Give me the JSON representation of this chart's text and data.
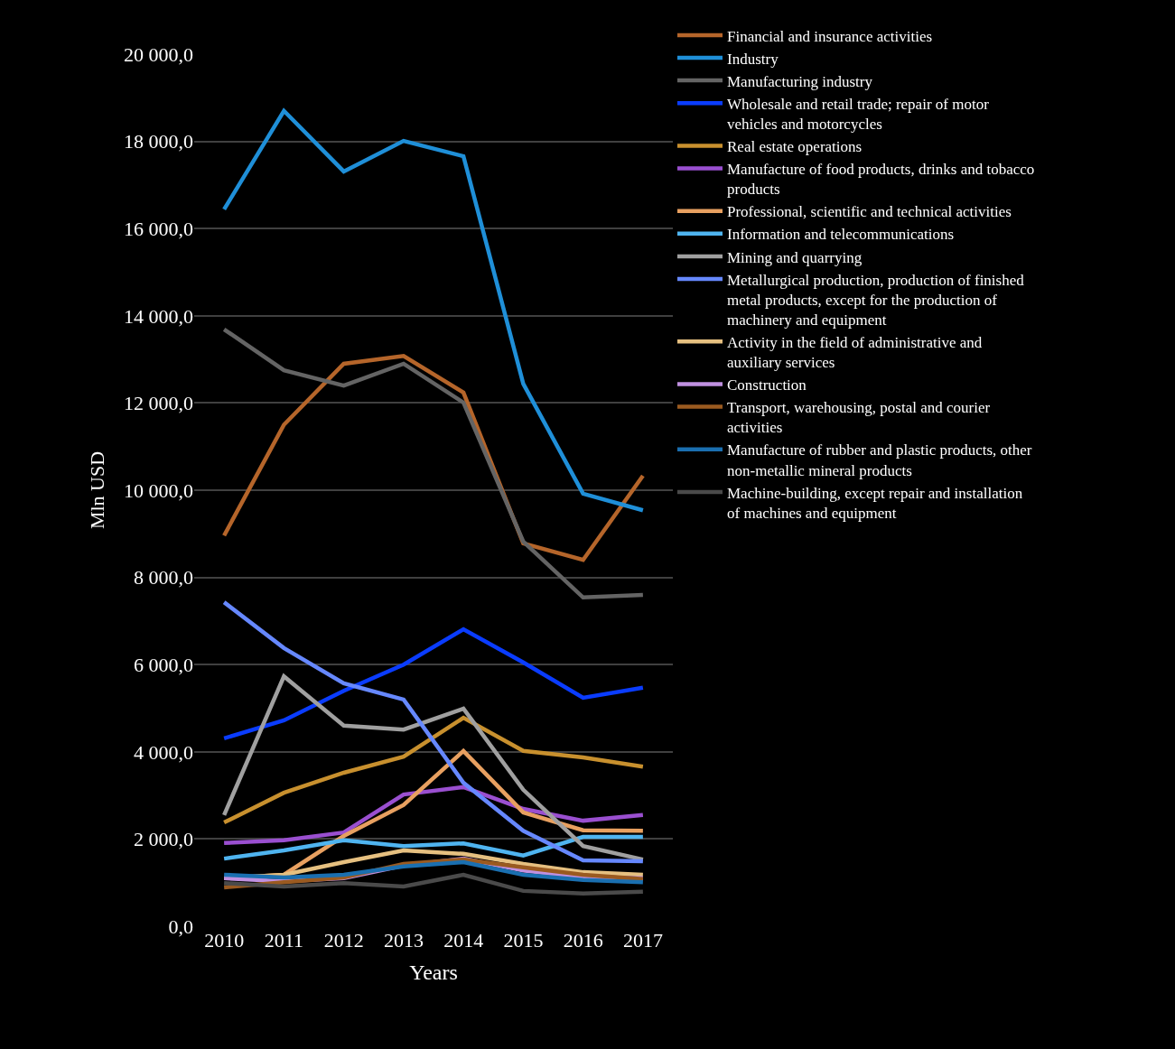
{
  "chart_data": {
    "type": "line",
    "xlabel": "Years",
    "ylabel": "Mln USD",
    "categories": [
      "2010",
      "2011",
      "2012",
      "2013",
      "2014",
      "2015",
      "2016",
      "2017"
    ],
    "ylim": [
      0,
      20000
    ],
    "yticks": [
      {
        "value": 0,
        "label": "0,0"
      },
      {
        "value": 2000,
        "label": "2 000,0"
      },
      {
        "value": 4000,
        "label": "4 000,0"
      },
      {
        "value": 6000,
        "label": "6 000,0"
      },
      {
        "value": 8000,
        "label": "8 000,0"
      },
      {
        "value": 10000,
        "label": "10 000,0"
      },
      {
        "value": 12000,
        "label": "12 000,0"
      },
      {
        "value": 14000,
        "label": "14 000,0"
      },
      {
        "value": 16000,
        "label": "16 000,0"
      },
      {
        "value": 18000,
        "label": "18 000,0"
      },
      {
        "value": 20000,
        "label": "20 000,0"
      }
    ],
    "grid": "y",
    "legend": "right",
    "marker": "none",
    "line_style": "solid",
    "series": [
      {
        "name": "Financial and insurance activities",
        "color": "#b5652a",
        "values": [
          8960,
          11500,
          12900,
          13080,
          12240,
          8780,
          8400,
          10330
        ]
      },
      {
        "name": "Industry",
        "color": "#1f8fd8",
        "values": [
          16440,
          18700,
          17310,
          18010,
          17660,
          12440,
          9920,
          9540
        ]
      },
      {
        "name": "Manufacturing industry",
        "color": "#646464",
        "values": [
          13690,
          12750,
          12400,
          12900,
          12010,
          8820,
          7540,
          7600
        ]
      },
      {
        "name": "Wholesale and retail trade; repair of motor vehicles and motorcycles",
        "color": "#0a3cff",
        "values": [
          4310,
          4720,
          5400,
          6000,
          6810,
          6050,
          5240,
          5470
        ]
      },
      {
        "name": "Real estate operations",
        "color": "#c8902e",
        "values": [
          2380,
          3060,
          3520,
          3890,
          4780,
          4020,
          3870,
          3660
        ]
      },
      {
        "name": "Manufacture of food products, drinks and tobacco products",
        "color": "#9a4fd0",
        "values": [
          1910,
          1970,
          2150,
          3020,
          3190,
          2690,
          2420,
          2550
        ]
      },
      {
        "name": "Professional, scientific and technical activities",
        "color": "#e8a060",
        "values": [
          1100,
          1180,
          2070,
          2780,
          4020,
          2610,
          2200,
          2190
        ]
      },
      {
        "name": "Information and telecommunications",
        "color": "#4fb4f0",
        "values": [
          1550,
          1740,
          1970,
          1840,
          1900,
          1620,
          2050,
          2050
        ]
      },
      {
        "name": "Mining and quarrying",
        "color": "#a0a0a0",
        "values": [
          2550,
          5730,
          4600,
          4510,
          4990,
          3130,
          1840,
          1530
        ]
      },
      {
        "name": "Metallurgical production, production of finished metal products, except for the production of machinery and equipment",
        "color": "#6688ff",
        "values": [
          7430,
          6380,
          5570,
          5200,
          3290,
          2190,
          1510,
          1490
        ]
      },
      {
        "name": "Activity in the field of administrative and auxiliary services",
        "color": "#e6c080",
        "values": [
          1100,
          1180,
          1470,
          1740,
          1660,
          1430,
          1240,
          1180
        ]
      },
      {
        "name": "Construction",
        "color": "#c090e0",
        "values": [
          1100,
          1030,
          1100,
          1390,
          1550,
          1280,
          1120,
          1100
        ]
      },
      {
        "name": "Transport, warehousing, postal and courier activities",
        "color": "#9a5a20",
        "values": [
          890,
          1010,
          1120,
          1430,
          1530,
          1350,
          1180,
          1080
        ]
      },
      {
        "name": "Manufacture of rubber and plastic products, other non-metallic mineral products",
        "color": "#1a6fb0",
        "values": [
          1180,
          1120,
          1180,
          1370,
          1470,
          1180,
          1060,
          1010
        ]
      },
      {
        "name": "Machine-building, except repair and installation of machines and equipment",
        "color": "#4a4a4a",
        "values": [
          990,
          910,
          990,
          910,
          1180,
          810,
          750,
          790
        ]
      }
    ]
  }
}
